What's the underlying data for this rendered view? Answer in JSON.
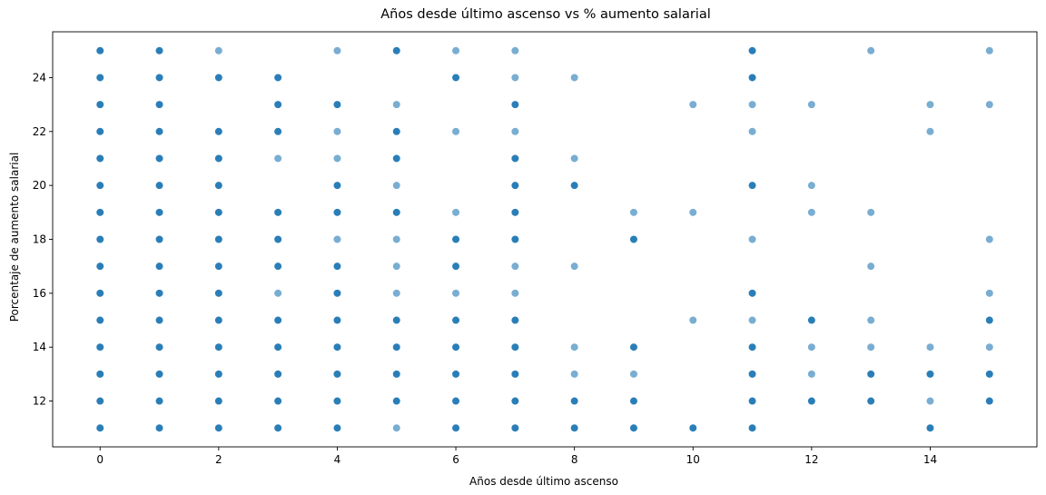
{
  "chart_data": {
    "type": "scatter",
    "title": "Años desde último ascenso vs % aumento salarial",
    "xlabel": "Años desde último ascenso",
    "ylabel": "Porcentaje de aumento salarial",
    "xlim": [
      -0.8,
      15.8
    ],
    "ylim": [
      10.3,
      25.7
    ],
    "xticks": [
      0,
      2,
      4,
      6,
      8,
      10,
      12,
      14
    ],
    "yticks": [
      12,
      14,
      16,
      18,
      20,
      22,
      24
    ],
    "grid": false,
    "legend": "none",
    "point_color": "#1f77b4",
    "series": [
      {
        "x": 0,
        "y": [
          11,
          12,
          13,
          14,
          15,
          16,
          17,
          18,
          19,
          20,
          21,
          22,
          23,
          24,
          25
        ],
        "density": "dense"
      },
      {
        "x": 1,
        "y": [
          11,
          12,
          13,
          14,
          15,
          16,
          17,
          18,
          19,
          20,
          21,
          22,
          23,
          24,
          25
        ],
        "density": "dense"
      },
      {
        "x": 2,
        "y": [
          11,
          12,
          13,
          14,
          15,
          16,
          17,
          18,
          19,
          20,
          21,
          22,
          24
        ],
        "density": "dense"
      },
      {
        "x": 2,
        "y": [
          25
        ],
        "density": "light"
      },
      {
        "x": 3,
        "y": [
          11,
          12,
          13,
          14,
          15,
          17,
          18,
          19,
          22,
          23,
          24
        ],
        "density": "dense"
      },
      {
        "x": 3,
        "y": [
          16,
          21
        ],
        "density": "light"
      },
      {
        "x": 4,
        "y": [
          11,
          12,
          13,
          14,
          15,
          16,
          17,
          19,
          20,
          23
        ],
        "density": "dense"
      },
      {
        "x": 4,
        "y": [
          18,
          21,
          22,
          25
        ],
        "density": "light"
      },
      {
        "x": 5,
        "y": [
          12,
          13,
          14,
          15,
          19,
          21,
          22,
          25
        ],
        "density": "dense"
      },
      {
        "x": 5,
        "y": [
          11,
          16,
          17,
          18,
          20,
          23
        ],
        "density": "light"
      },
      {
        "x": 6,
        "y": [
          11,
          12,
          13,
          14,
          15,
          17,
          18,
          24
        ],
        "density": "dense"
      },
      {
        "x": 6,
        "y": [
          16,
          19,
          22,
          25
        ],
        "density": "light"
      },
      {
        "x": 7,
        "y": [
          11,
          12,
          13,
          14,
          15,
          18,
          19,
          20,
          21,
          23
        ],
        "density": "dense"
      },
      {
        "x": 7,
        "y": [
          16,
          17,
          22,
          24,
          25
        ],
        "density": "light"
      },
      {
        "x": 8,
        "y": [
          11,
          12,
          20
        ],
        "density": "dense"
      },
      {
        "x": 8,
        "y": [
          13,
          14,
          17,
          21,
          24
        ],
        "density": "light"
      },
      {
        "x": 9,
        "y": [
          11,
          12,
          14,
          18
        ],
        "density": "dense"
      },
      {
        "x": 9,
        "y": [
          13,
          19
        ],
        "density": "light"
      },
      {
        "x": 10,
        "y": [
          11
        ],
        "density": "dense"
      },
      {
        "x": 10,
        "y": [
          15,
          19,
          23
        ],
        "density": "light"
      },
      {
        "x": 11,
        "y": [
          11,
          12,
          13,
          14,
          16,
          20,
          24,
          25
        ],
        "density": "dense"
      },
      {
        "x": 11,
        "y": [
          15,
          18,
          22,
          23
        ],
        "density": "light"
      },
      {
        "x": 12,
        "y": [
          12,
          15
        ],
        "density": "dense"
      },
      {
        "x": 12,
        "y": [
          13,
          14,
          19,
          20,
          23
        ],
        "density": "light"
      },
      {
        "x": 13,
        "y": [
          12,
          13
        ],
        "density": "dense"
      },
      {
        "x": 13,
        "y": [
          14,
          15,
          17,
          19,
          25
        ],
        "density": "light"
      },
      {
        "x": 14,
        "y": [
          11,
          13
        ],
        "density": "dense"
      },
      {
        "x": 14,
        "y": [
          12,
          14,
          22,
          23
        ],
        "density": "light"
      },
      {
        "x": 15,
        "y": [
          12,
          13,
          15
        ],
        "density": "dense"
      },
      {
        "x": 15,
        "y": [
          14,
          16,
          18,
          23,
          25
        ],
        "density": "light"
      }
    ]
  }
}
